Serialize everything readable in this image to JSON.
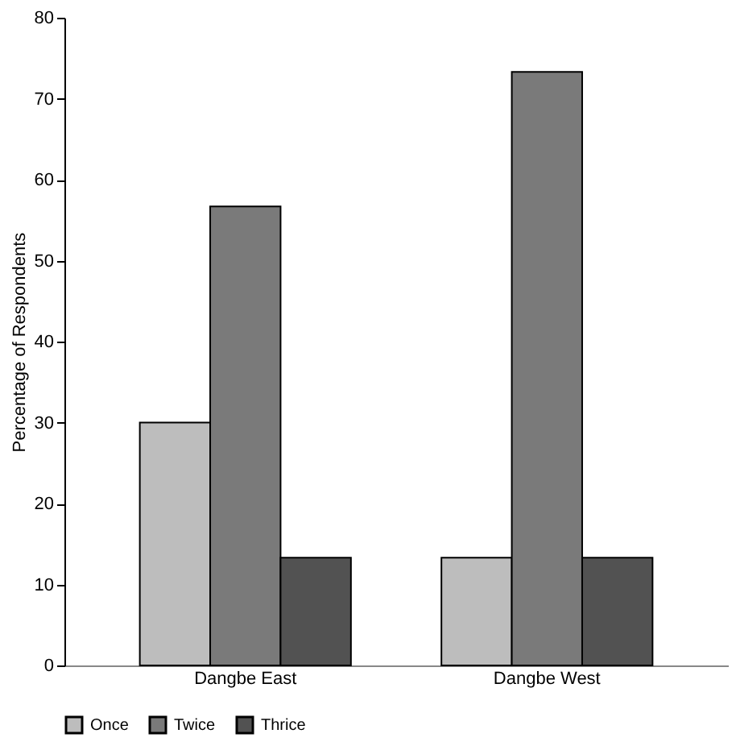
{
  "chart_data": {
    "type": "bar",
    "ylabel": "Percentage of Respondents",
    "categories": [
      "Dangbe East",
      "Dangbe West"
    ],
    "series": [
      {
        "name": "Once",
        "color": "#bdbdbd",
        "values": [
          30,
          13.3
        ]
      },
      {
        "name": "Twice",
        "color": "#7a7a7a",
        "values": [
          56.7,
          73.3
        ]
      },
      {
        "name": "Thrice",
        "color": "#525252",
        "values": [
          13.3,
          13.3
        ]
      }
    ],
    "ylim": [
      0,
      80
    ],
    "yticks": [
      0,
      10,
      20,
      30,
      40,
      50,
      60,
      70,
      80
    ],
    "grid": false,
    "legend": "bottom"
  }
}
